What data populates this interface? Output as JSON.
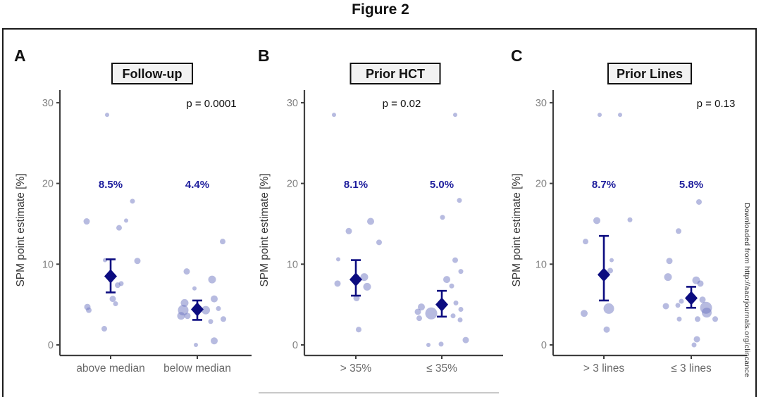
{
  "figure": {
    "title": "Figure 2"
  },
  "watermark": {
    "text": "Downloaded from http://aacrjournals.org/clincance"
  },
  "colors": {
    "point_fill": "#6f77c2",
    "mean_navy": "#0c0c80",
    "pct_label": "#1c1c9c",
    "axis": "#404040",
    "ytick_label": "#808080",
    "xtick_label": "#686868",
    "strip_bg": "#f2f2f2",
    "strip_border": "#111111"
  },
  "chart_data": [
    {
      "type": "scatter",
      "panel_letter": "A",
      "strip_title": "Follow-up",
      "p_value": "p = 0.0001",
      "ylabel": "SPM point estimate [%]",
      "ylim": [
        0,
        30
      ],
      "yticks": [
        0,
        10,
        20,
        30
      ],
      "legend": "bubble size = study weight; diamond = pooled SPM point estimate with 95% CI",
      "groups": [
        {
          "label": "above median",
          "mean": 8.5,
          "mean_label": "8.5%",
          "ci": [
            6.5,
            10.6
          ],
          "points": [
            [
              -5,
              28.5,
              3
            ],
            [
              31,
              17.8,
              3.5
            ],
            [
              -34,
              15.3,
              4.5
            ],
            [
              22,
              15.4,
              3
            ],
            [
              12,
              14.5,
              4
            ],
            [
              -8,
              10.5,
              3
            ],
            [
              38,
              10.4,
              4.5
            ],
            [
              10,
              7.4,
              4
            ],
            [
              15,
              7.6,
              3.5
            ],
            [
              3,
              5.7,
              4.5
            ],
            [
              7,
              5.1,
              3.5
            ],
            [
              -33,
              4.7,
              4.5
            ],
            [
              -31,
              4.3,
              4
            ],
            [
              -9,
              2.0,
              4
            ]
          ]
        },
        {
          "label": "below median",
          "mean": 4.4,
          "mean_label": "4.4%",
          "ci": [
            3.1,
            5.5
          ],
          "points": [
            [
              36,
              12.8,
              4
            ],
            [
              -15,
              9.1,
              4.5
            ],
            [
              21,
              8.1,
              5.5
            ],
            [
              -4,
              7.0,
              3
            ],
            [
              24,
              5.7,
              5
            ],
            [
              -18,
              5.2,
              5.5
            ],
            [
              -20,
              4.3,
              7.5
            ],
            [
              -23,
              3.6,
              5.5
            ],
            [
              -14,
              3.6,
              4.5
            ],
            [
              12,
              4.3,
              6
            ],
            [
              30,
              4.5,
              3.5
            ],
            [
              19,
              2.9,
              3.5
            ],
            [
              37,
              3.2,
              4
            ],
            [
              24,
              0.5,
              5
            ],
            [
              -2,
              0.0,
              3
            ]
          ]
        }
      ]
    },
    {
      "type": "scatter",
      "panel_letter": "B",
      "strip_title": "Prior HCT",
      "p_value": "p = 0.02",
      "ylabel": "SPM point estimate [%]",
      "ylim": [
        0,
        30
      ],
      "yticks": [
        0,
        10,
        20,
        30
      ],
      "groups": [
        {
          "label": "> 35%",
          "mean": 8.1,
          "mean_label": "8.1%",
          "ci": [
            6.1,
            10.5
          ],
          "points": [
            [
              -31,
              28.5,
              3
            ],
            [
              21,
              15.3,
              5
            ],
            [
              -10,
              14.1,
              4.5
            ],
            [
              33,
              12.7,
              4
            ],
            [
              -25,
              10.6,
              3
            ],
            [
              -26,
              7.6,
              4.5
            ],
            [
              12,
              8.4,
              5.5
            ],
            [
              16,
              7.2,
              5.5
            ],
            [
              1,
              5.8,
              4.5
            ],
            [
              4,
              1.9,
              4
            ]
          ]
        },
        {
          "label": "≤ 35%",
          "mean": 5.0,
          "mean_label": "5.0%",
          "ci": [
            3.5,
            6.7
          ],
          "points": [
            [
              19,
              28.5,
              3
            ],
            [
              25,
              17.9,
              3.5
            ],
            [
              1,
              15.8,
              3.5
            ],
            [
              19,
              10.5,
              4
            ],
            [
              27,
              9.1,
              3.5
            ],
            [
              7,
              8.1,
              5
            ],
            [
              14,
              7.3,
              3.5
            ],
            [
              20,
              5.2,
              3.5
            ],
            [
              27,
              4.4,
              3.5
            ],
            [
              -29,
              4.7,
              5
            ],
            [
              -34,
              4.1,
              4.5
            ],
            [
              -32,
              3.3,
              4
            ],
            [
              -15,
              3.9,
              8.5
            ],
            [
              16,
              3.6,
              3.5
            ],
            [
              26,
              3.1,
              3.5
            ],
            [
              34,
              0.6,
              4.5
            ],
            [
              -19,
              0.0,
              3
            ],
            [
              -1,
              0.1,
              3.5
            ]
          ]
        }
      ]
    },
    {
      "type": "scatter",
      "panel_letter": "C",
      "strip_title": "Prior Lines",
      "p_value": "p = 0.13",
      "ylabel": "SPM point estimate [%]",
      "ylim": [
        0,
        30
      ],
      "yticks": [
        0,
        10,
        20,
        30
      ],
      "groups": [
        {
          "label": "> 3 lines",
          "mean": 8.7,
          "mean_label": "8.7%",
          "ci": [
            5.5,
            13.5
          ],
          "points": [
            [
              -6,
              28.5,
              3
            ],
            [
              23,
              28.5,
              3
            ],
            [
              -10,
              15.4,
              5
            ],
            [
              37,
              15.5,
              3.5
            ],
            [
              -26,
              12.8,
              4
            ],
            [
              11,
              10.5,
              3
            ],
            [
              9,
              9.2,
              4
            ],
            [
              7,
              4.5,
              7.5
            ],
            [
              -28,
              3.9,
              5
            ],
            [
              4,
              1.9,
              4.5
            ]
          ]
        },
        {
          "label": "≤ 3 lines",
          "mean": 5.8,
          "mean_label": "5.8%",
          "ci": [
            4.6,
            7.2
          ],
          "points": [
            [
              11,
              17.7,
              4
            ],
            [
              -18,
              14.1,
              4
            ],
            [
              -31,
              10.4,
              4.5
            ],
            [
              -33,
              8.4,
              5.5
            ],
            [
              7,
              8.0,
              5.5
            ],
            [
              13,
              7.6,
              4.5
            ],
            [
              -14,
              5.4,
              3.5
            ],
            [
              -36,
              4.8,
              4.5
            ],
            [
              -19,
              4.9,
              3.5
            ],
            [
              16,
              5.6,
              4.5
            ],
            [
              21,
              4.6,
              8.5
            ],
            [
              22,
              4.0,
              7
            ],
            [
              9,
              3.2,
              4
            ],
            [
              34,
              3.2,
              4
            ],
            [
              -17,
              3.2,
              3.5
            ],
            [
              8,
              0.7,
              4.5
            ],
            [
              4,
              0.0,
              3.5
            ]
          ]
        }
      ]
    }
  ]
}
